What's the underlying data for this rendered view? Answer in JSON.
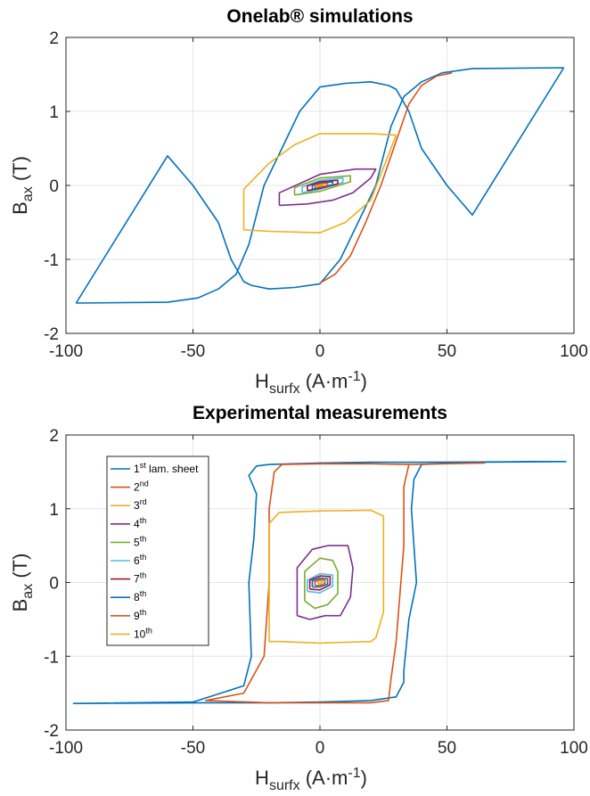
{
  "chart_data": [
    {
      "type": "line",
      "title": "Onelab® simulations",
      "xlabel": {
        "main": "H",
        "sub": "surfx",
        "unit": "(A·m",
        "exp": "-1",
        "close": ")"
      },
      "ylabel": {
        "main": "B",
        "sub": "ax",
        "unit": "(T)"
      },
      "xlim": [
        -100,
        100
      ],
      "ylim": [
        -2,
        2
      ],
      "xticks": [
        "-100",
        "-50",
        "0",
        "50",
        "100"
      ],
      "yticks": [
        "-2",
        "-1",
        "0",
        "1",
        "2"
      ],
      "grid": true,
      "series": [
        {
          "color": "#0072BD",
          "x": [
            96,
            60,
            48,
            40,
            33,
            28,
            22,
            15,
            8,
            0,
            -10,
            -20,
            -27,
            -30,
            -35,
            -40,
            -50,
            -60,
            -96
          ],
          "y": [
            1.59,
            1.58,
            1.52,
            1.4,
            1.2,
            0.8,
            0.0,
            -0.5,
            -1.0,
            -1.33,
            -1.38,
            -1.4,
            -1.35,
            -1.3,
            -1.0,
            -0.5,
            0.0,
            0.4,
            -1.59
          ],
          "x2": [
            -96,
            -60,
            -48,
            -40,
            -33,
            -28,
            -22,
            -15,
            -8,
            0,
            10,
            20,
            27,
            30,
            35,
            40,
            50,
            60,
            96
          ],
          "y2": [
            -1.59,
            -1.58,
            -1.52,
            -1.4,
            -1.2,
            -0.8,
            0.0,
            0.5,
            1.0,
            1.33,
            1.38,
            1.4,
            1.35,
            1.3,
            1.0,
            0.5,
            0.0,
            -0.4,
            1.59
          ]
        },
        {
          "color": "#D95319",
          "x": [
            52,
            46,
            40,
            35,
            30,
            24,
            18,
            12,
            6,
            0
          ],
          "y": [
            1.52,
            1.48,
            1.35,
            1.1,
            0.6,
            0.0,
            -0.5,
            -0.95,
            -1.2,
            -1.32
          ]
        },
        {
          "color": "#EDB120",
          "x": [
            30,
            20,
            10,
            0,
            -10,
            -20,
            -30,
            -30,
            -20,
            -10,
            0,
            10,
            20,
            30
          ],
          "y": [
            0.68,
            0.7,
            0.7,
            0.7,
            0.55,
            0.3,
            -0.05,
            -0.6,
            -0.62,
            -0.63,
            -0.64,
            -0.5,
            -0.2,
            0.68
          ]
        },
        {
          "color": "#7E2F8E",
          "x": [
            -16,
            -16,
            0,
            14,
            22,
            20,
            13,
            5,
            -5,
            -16
          ],
          "y": [
            -0.27,
            -0.1,
            0.15,
            0.22,
            0.22,
            0.1,
            -0.1,
            -0.2,
            -0.25,
            -0.27
          ]
        },
        {
          "color": "#77AC30",
          "x": [
            -10,
            -10,
            0,
            12,
            12,
            0,
            -10
          ],
          "y": [
            -0.13,
            -0.03,
            0.1,
            0.13,
            0.05,
            -0.08,
            -0.13
          ]
        },
        {
          "color": "#4DBEEE",
          "x": [
            -7,
            -7,
            0,
            9,
            9,
            0,
            -7
          ],
          "y": [
            -0.1,
            -0.02,
            0.07,
            0.1,
            0.04,
            -0.05,
            -0.1
          ]
        },
        {
          "color": "#A2142F",
          "x": [
            -5,
            -5,
            0,
            7,
            7,
            0,
            -5
          ],
          "y": [
            -0.07,
            -0.01,
            0.05,
            0.07,
            0.02,
            -0.04,
            -0.07
          ]
        },
        {
          "color": "#0072BD",
          "x": [
            -3,
            -3,
            0,
            5,
            5,
            0,
            -3
          ],
          "y": [
            -0.05,
            0.0,
            0.03,
            0.05,
            0.01,
            -0.03,
            -0.05
          ]
        },
        {
          "color": "#D95319",
          "x": [
            -2,
            -2,
            0,
            3,
            3,
            0,
            -2
          ],
          "y": [
            -0.03,
            0.0,
            0.02,
            0.03,
            0.0,
            -0.02,
            -0.03
          ]
        },
        {
          "color": "#EDB120",
          "x": [
            -1,
            1,
            -1
          ],
          "y": [
            -0.01,
            0.01,
            -0.01
          ]
        }
      ]
    },
    {
      "type": "line",
      "title": "Experimental measurements",
      "xlabel": {
        "main": "H",
        "sub": "surfx",
        "unit": "(A·m",
        "exp": "-1",
        "close": ")"
      },
      "ylabel": {
        "main": "B",
        "sub": "ax",
        "unit": "(T)"
      },
      "xlim": [
        -100,
        100
      ],
      "ylim": [
        -2,
        2
      ],
      "xticks": [
        "-100",
        "-50",
        "0",
        "50",
        "100"
      ],
      "yticks": [
        "-2",
        "-1",
        "0",
        "1",
        "2"
      ],
      "grid": true,
      "legend": {
        "placement": "top-left",
        "entries": [
          {
            "base": "1",
            "sup": "st",
            "rest": " lam. sheet",
            "color": "#0072BD"
          },
          {
            "base": "2",
            "sup": "nd",
            "rest": "",
            "color": "#D95319"
          },
          {
            "base": "3",
            "sup": "rd",
            "rest": "",
            "color": "#EDB120"
          },
          {
            "base": "4",
            "sup": "th",
            "rest": "",
            "color": "#7E2F8E"
          },
          {
            "base": "5",
            "sup": "th",
            "rest": "",
            "color": "#77AC30"
          },
          {
            "base": "6",
            "sup": "th",
            "rest": "",
            "color": "#4DBEEE"
          },
          {
            "base": "7",
            "sup": "th",
            "rest": "",
            "color": "#A2142F"
          },
          {
            "base": "8",
            "sup": "th",
            "rest": "",
            "color": "#0072BD"
          },
          {
            "base": "9",
            "sup": "th",
            "rest": "",
            "color": "#D95319"
          },
          {
            "base": "10",
            "sup": "th",
            "rest": "",
            "color": "#EDB120"
          }
        ]
      },
      "series": [
        {
          "color": "#0072BD",
          "x": [
            97,
            60,
            40,
            37,
            36,
            38,
            35,
            33,
            33,
            30,
            20,
            0,
            -20,
            -45,
            -97,
            -50,
            -30,
            -27,
            -28,
            -26,
            -25,
            -28,
            -25,
            -20,
            0,
            20,
            40,
            97
          ],
          "y": [
            1.64,
            1.63,
            1.6,
            1.4,
            1.0,
            0.0,
            -0.5,
            -1.2,
            -1.35,
            -1.55,
            -1.6,
            -1.62,
            -1.63,
            -1.63,
            -1.64,
            -1.62,
            -1.4,
            -1.0,
            0.0,
            0.6,
            1.2,
            1.45,
            1.58,
            1.6,
            1.62,
            1.63,
            1.63,
            1.64
          ]
        },
        {
          "color": "#D95319",
          "x": [
            65,
            35,
            33,
            33,
            30,
            28,
            27,
            20,
            0,
            -20,
            -45,
            -30,
            -22,
            -20,
            -20,
            -18,
            -15,
            0,
            20,
            35,
            65
          ],
          "y": [
            1.62,
            1.6,
            1.3,
            0.5,
            -0.8,
            -1.3,
            -1.6,
            -1.63,
            -1.63,
            -1.63,
            -1.6,
            -1.5,
            -1.0,
            0.0,
            1.0,
            1.5,
            1.6,
            1.61,
            1.61,
            1.6,
            1.62
          ]
        },
        {
          "color": "#EDB120",
          "x": [
            -20,
            -20,
            -16,
            0,
            20,
            25,
            25,
            22,
            20,
            0,
            -16,
            -20
          ],
          "y": [
            -0.8,
            0.8,
            0.95,
            0.97,
            0.98,
            0.9,
            -0.4,
            -0.75,
            -0.8,
            -0.82,
            -0.8,
            -0.8
          ]
        },
        {
          "color": "#7E2F8E",
          "x": [
            -9,
            -9,
            -3,
            3,
            11,
            13,
            12,
            8,
            2,
            -4,
            -9
          ],
          "y": [
            -0.45,
            0.2,
            0.45,
            0.5,
            0.5,
            0.2,
            -0.2,
            -0.45,
            -0.45,
            -0.5,
            -0.45
          ]
        },
        {
          "color": "#77AC30",
          "x": [
            -6,
            -6,
            0,
            5,
            7,
            7,
            3,
            -2,
            -6
          ],
          "y": [
            -0.25,
            0.15,
            0.33,
            0.3,
            0.15,
            -0.15,
            -0.3,
            -0.35,
            -0.25
          ]
        },
        {
          "color": "#4DBEEE",
          "x": [
            -5,
            -5,
            0,
            5,
            5,
            0,
            -5
          ],
          "y": [
            -0.12,
            0.03,
            0.12,
            0.1,
            -0.05,
            -0.14,
            -0.12
          ]
        },
        {
          "color": "#A2142F",
          "x": [
            -4,
            -4,
            0,
            4,
            4,
            0,
            -4
          ],
          "y": [
            -0.09,
            0.03,
            0.09,
            0.08,
            -0.03,
            -0.1,
            -0.09
          ]
        },
        {
          "color": "#0072BD",
          "x": [
            -3,
            -3,
            0,
            3,
            3,
            0,
            -3
          ],
          "y": [
            -0.06,
            0.02,
            0.06,
            0.05,
            -0.02,
            -0.06,
            -0.06
          ]
        },
        {
          "color": "#D95319",
          "x": [
            -2,
            -2,
            0,
            2,
            2,
            0,
            -2
          ],
          "y": [
            -0.04,
            0.01,
            0.04,
            0.03,
            -0.01,
            -0.04,
            -0.04
          ]
        },
        {
          "color": "#EDB120",
          "x": [
            -1,
            0,
            1,
            0,
            -1
          ],
          "y": [
            -0.01,
            0.02,
            0.01,
            -0.02,
            -0.01
          ]
        }
      ]
    }
  ]
}
